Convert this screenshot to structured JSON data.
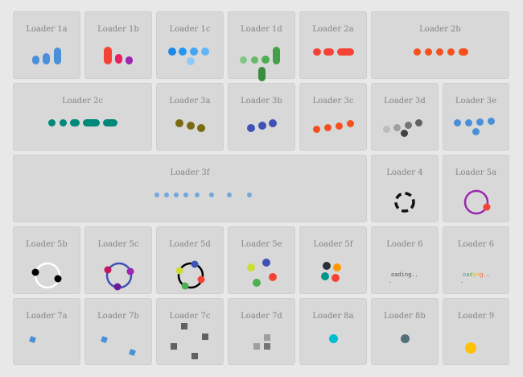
{
  "loaders": [
    {
      "id": "1a",
      "title": "Loader 1a"
    },
    {
      "id": "1b",
      "title": "Loader 1b"
    },
    {
      "id": "1c",
      "title": "Loader 1c"
    },
    {
      "id": "1d",
      "title": "Loader 1d"
    },
    {
      "id": "2a",
      "title": "Loader 2a"
    },
    {
      "id": "2b",
      "title": "Loader 2b"
    },
    {
      "id": "2c",
      "title": "Loader 2c"
    },
    {
      "id": "3a",
      "title": "Loader 3a"
    },
    {
      "id": "3b",
      "title": "Loader 3b"
    },
    {
      "id": "3c",
      "title": "Loader 3c"
    },
    {
      "id": "3d",
      "title": "Loader 3d"
    },
    {
      "id": "3e",
      "title": "Loader 3e"
    },
    {
      "id": "3f",
      "title": "Loader 3f"
    },
    {
      "id": "4",
      "title": "Loader 4"
    },
    {
      "id": "5a",
      "title": "Loader 5a"
    },
    {
      "id": "5b",
      "title": "Loader 5b"
    },
    {
      "id": "5c",
      "title": "Loader 5c"
    },
    {
      "id": "5d",
      "title": "Loader 5d"
    },
    {
      "id": "5e",
      "title": "Loader 5e"
    },
    {
      "id": "5f",
      "title": "Loader 5f"
    },
    {
      "id": "6a",
      "title": "Loader 6",
      "text_line1": "oading..",
      "text_line2": "."
    },
    {
      "id": "6b",
      "title": "Loader 6",
      "text_line1": "oading..",
      "text_line2": "."
    },
    {
      "id": "7a",
      "title": "Loader 7a"
    },
    {
      "id": "7b",
      "title": "Loader 7b"
    },
    {
      "id": "7c",
      "title": "Loader 7c"
    },
    {
      "id": "7d",
      "title": "Loader 7d"
    },
    {
      "id": "8a",
      "title": "Loader 8a"
    },
    {
      "id": "8b",
      "title": "Loader 8b"
    },
    {
      "id": "9",
      "title": "Loader 9"
    }
  ],
  "colors": {
    "page_bg": "#e8e8e8",
    "card_bg": "#d8d8d8",
    "blue": "#4a90d9",
    "red": "#f44336",
    "teal": "#00897b",
    "orange_red": "#f4511e",
    "olive": "#7a6a10",
    "indigo": "#3f51b5",
    "green": "#43a047",
    "purple": "#9c27b0",
    "cyan": "#00bcd4",
    "slate": "#546e7a",
    "amber": "#ffc107"
  }
}
